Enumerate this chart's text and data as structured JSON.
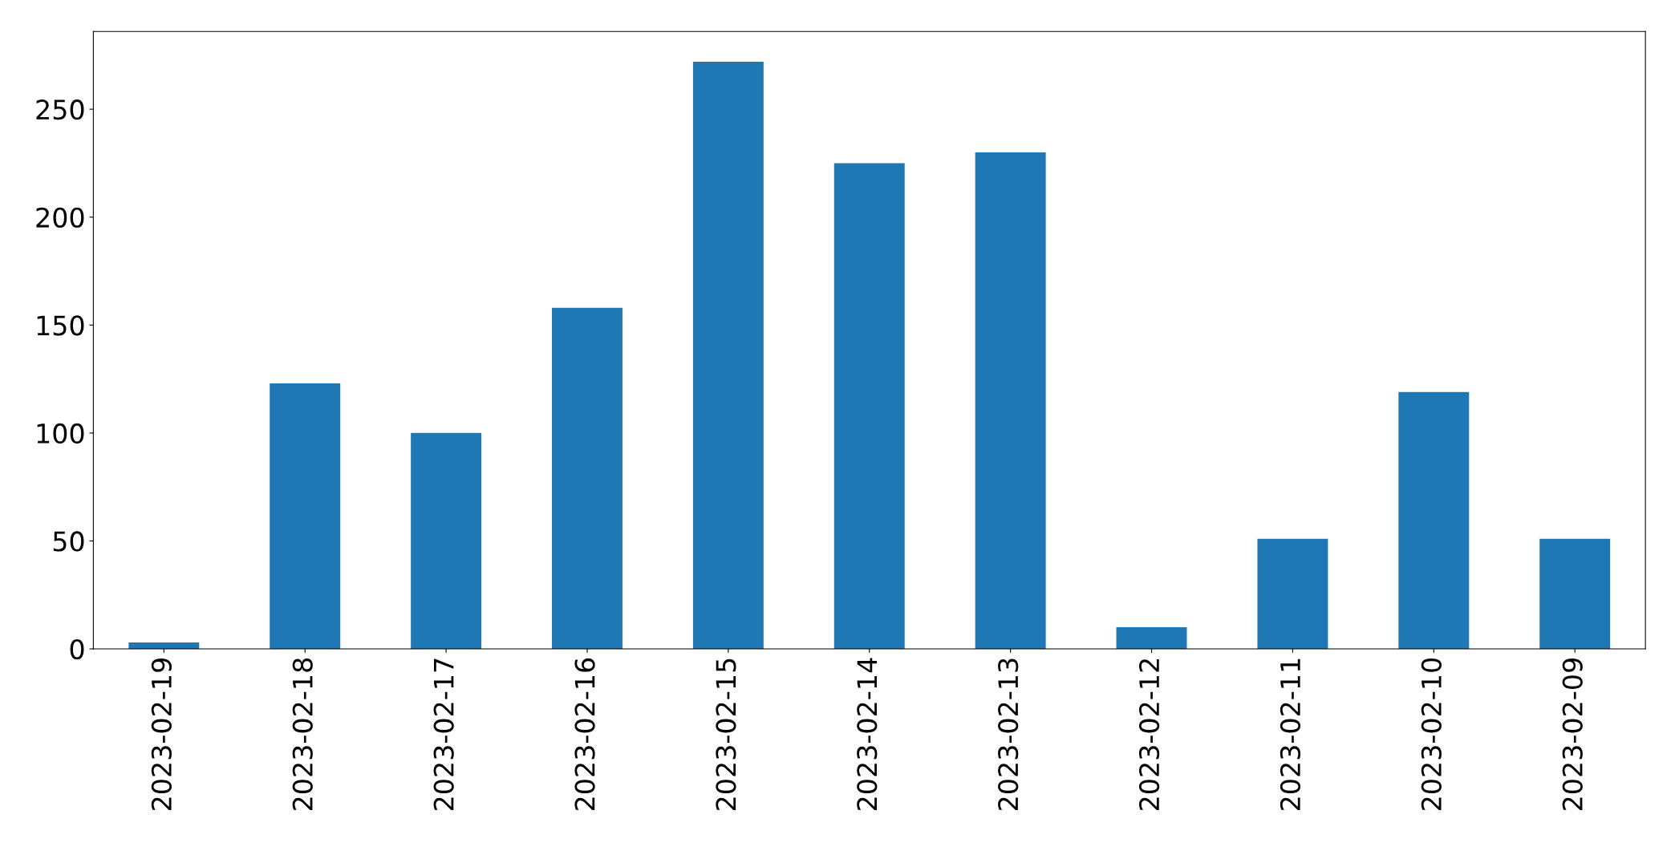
{
  "chart_data": {
    "type": "bar",
    "categories": [
      "2023-02-19",
      "2023-02-18",
      "2023-02-17",
      "2023-02-16",
      "2023-02-15",
      "2023-02-14",
      "2023-02-13",
      "2023-02-12",
      "2023-02-11",
      "2023-02-10",
      "2023-02-09"
    ],
    "values": [
      3,
      123,
      100,
      158,
      272,
      225,
      230,
      10,
      51,
      119,
      51
    ],
    "color": "#1f77b4",
    "ylim": [
      0,
      286
    ],
    "yticks": [
      0,
      50,
      100,
      150,
      200,
      250
    ],
    "grid": false
  }
}
